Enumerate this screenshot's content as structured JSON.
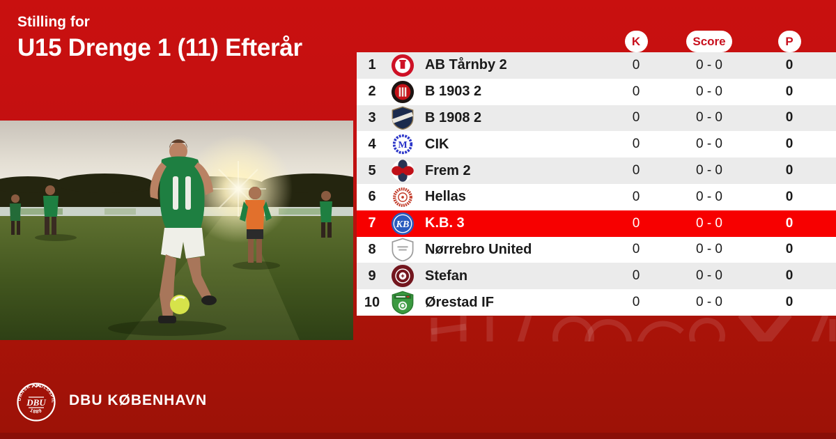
{
  "header": {
    "subtitle": "Stilling for",
    "title": "U15 Drenge 1 (11) Efterår"
  },
  "table": {
    "columns": {
      "k": "K",
      "score": "Score",
      "p": "P"
    },
    "rows": [
      {
        "pos": "1",
        "club": "AB Tårnby 2",
        "k": "0",
        "score": "0 - 0",
        "p": "0",
        "highlight": false,
        "logo": {
          "kind": "ring",
          "outer": "#CE1126",
          "inner": "#FFFFFF",
          "mark": "#CE1126"
        }
      },
      {
        "pos": "2",
        "club": "B 1903 2",
        "k": "0",
        "score": "0 - 0",
        "p": "0",
        "highlight": false,
        "logo": {
          "kind": "disc-bars",
          "outer": "#1C1412",
          "inner": "#C41218",
          "mark": "#F2E9E4"
        }
      },
      {
        "pos": "3",
        "club": "B 1908 2",
        "k": "0",
        "score": "0 - 0",
        "p": "0",
        "highlight": false,
        "logo": {
          "kind": "shield-band",
          "outer": "#1B2B4D",
          "edge": "#8A7450",
          "mark": "#E8E6DF"
        }
      },
      {
        "pos": "4",
        "club": "CIK",
        "k": "0",
        "score": "0 - 0",
        "p": "0",
        "highlight": false,
        "logo": {
          "kind": "gear",
          "outer": "#2B35C9",
          "inner": "#FFFFFF"
        }
      },
      {
        "pos": "5",
        "club": "Frem 2",
        "k": "0",
        "score": "0 - 0",
        "p": "0",
        "highlight": false,
        "logo": {
          "kind": "petals",
          "outer": "#2A3454",
          "mark": "#C01018"
        }
      },
      {
        "pos": "6",
        "club": "Hellas",
        "k": "0",
        "score": "0 - 0",
        "p": "0",
        "highlight": false,
        "logo": {
          "kind": "ornate",
          "outer": "#C23A28"
        }
      },
      {
        "pos": "7",
        "club": "K.B. 3",
        "k": "0",
        "score": "0 - 0",
        "p": "0",
        "highlight": true,
        "logo": {
          "kind": "mono",
          "outer": "#2A5CBE",
          "inner": "#2A5CBE",
          "mark": "#FFFFFF",
          "letters": "KB"
        }
      },
      {
        "pos": "8",
        "club": "Nørrebro United",
        "k": "0",
        "score": "0 - 0",
        "p": "0",
        "highlight": false,
        "logo": {
          "kind": "shield-plain",
          "outer": "#FFFFFF",
          "edge": "#9B9B9B",
          "mark": "#AAAAAA"
        }
      },
      {
        "pos": "9",
        "club": "Stefan",
        "k": "0",
        "score": "0 - 0",
        "p": "0",
        "highlight": false,
        "logo": {
          "kind": "target",
          "outer": "#73161E"
        }
      },
      {
        "pos": "10",
        "club": "Ørestad IF",
        "k": "0",
        "score": "0 - 0",
        "p": "0",
        "highlight": false,
        "logo": {
          "kind": "shield-green",
          "outer": "#3B9A40",
          "edge": "#2B7A30",
          "band": "#256E2A",
          "mark": "#C8281E"
        }
      }
    ]
  },
  "footer": {
    "org": "DBU KØBENHAVN",
    "seal": {
      "ring_text": "DANSK · BOLDSPIL·UNION",
      "year": "1889",
      "center": "DBU"
    }
  },
  "colors": {
    "bg_top": "#C9100F",
    "bg_bottom": "#9C1207",
    "bottom_strip": "#8A0F08",
    "highlight": "#F70000",
    "row_alt": "#EBEBEB",
    "pill_text": "#C8101E",
    "text_dark": "#1A1A1A"
  }
}
